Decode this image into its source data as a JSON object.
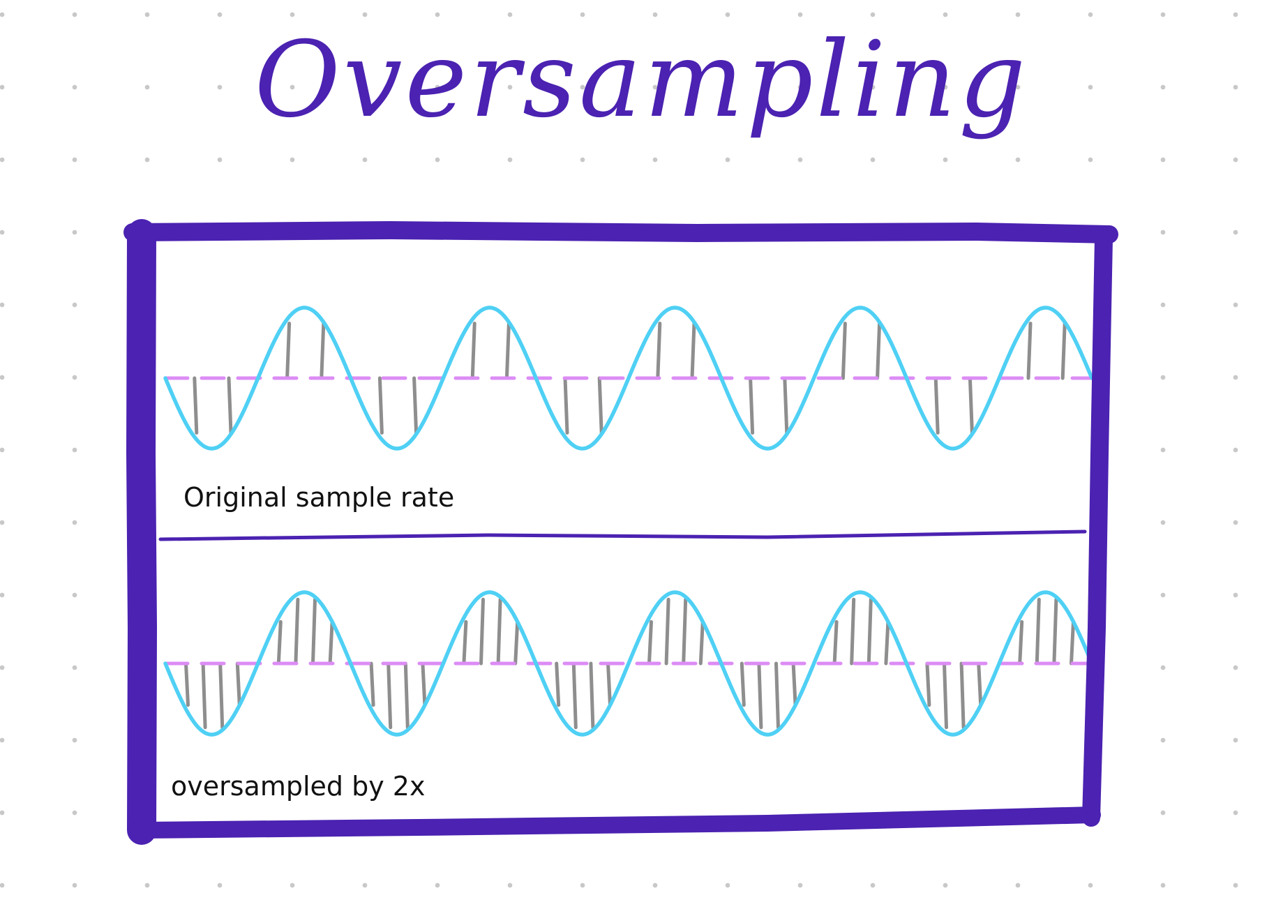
{
  "title": "Oversampling",
  "panels": [
    {
      "caption": "Original sample rate",
      "sample_lines_per_cycle": 4
    },
    {
      "caption": "oversampled by 2x",
      "sample_lines_per_cycle": 8
    }
  ],
  "cycles": 5,
  "colors": {
    "frame": "#4B22B1",
    "wave": "#4FD0F4",
    "baseline": "#DC8CF5",
    "sample_line": "#8E8E8E",
    "text": "#111111"
  }
}
